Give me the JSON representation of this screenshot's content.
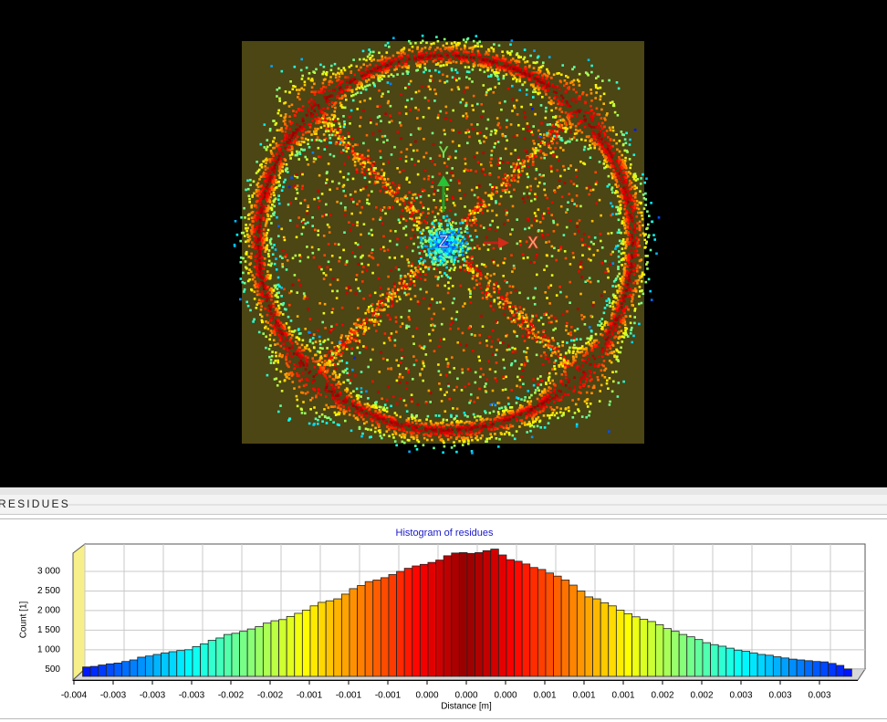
{
  "viewport": {
    "axis_labels": {
      "y": "Y",
      "z": "Z",
      "x": "X"
    }
  },
  "panel": {
    "title": "RESIDUES"
  },
  "chart_data": {
    "type": "histogram",
    "title": "Histogram of residues",
    "xlabel": "Distance [m]",
    "ylabel": "Count [1]",
    "colormap": "jet",
    "bins": [
      -0.00352,
      -0.003448,
      -0.003376,
      -0.003304,
      -0.003232,
      -0.00316,
      -0.003088,
      -0.003016,
      -0.002944,
      -0.002872,
      -0.0028,
      -0.002728,
      -0.002656,
      -0.002584,
      -0.002512,
      -0.00244,
      -0.002368,
      -0.002296,
      -0.002224,
      -0.002152,
      -0.00208,
      -0.002008,
      -0.001936,
      -0.001864,
      -0.001792,
      -0.00172,
      -0.001648,
      -0.001576,
      -0.001504,
      -0.001432,
      -0.00136,
      -0.001288,
      -0.001216,
      -0.001144,
      -0.001072,
      -0.001,
      -0.000928,
      -0.000856,
      -0.000784,
      -0.000712,
      -0.00064,
      -0.000568,
      -0.000496,
      -0.000424,
      -0.000352,
      -0.00028,
      -0.000208,
      -0.000136,
      -6.4e-05,
      8e-06,
      8e-05,
      0.000152,
      0.000224,
      0.000296,
      0.000368,
      0.00044,
      0.000512,
      0.000584,
      0.000656,
      0.000728,
      0.0008,
      0.000872,
      0.000944,
      0.001016,
      0.001088,
      0.00116,
      0.001232,
      0.001304,
      0.001376,
      0.001448,
      0.00152,
      0.001592,
      0.001664,
      0.001736,
      0.001808,
      0.00188,
      0.001952,
      0.002024,
      0.002096,
      0.002168,
      0.00224,
      0.002312,
      0.002384,
      0.002456,
      0.002528,
      0.0026,
      0.002672,
      0.002744,
      0.002816,
      0.002888,
      0.00296,
      0.003032,
      0.003104,
      0.003176,
      0.003248,
      0.00332,
      0.003392,
      0.003464,
      0.003536
    ],
    "values": [
      560,
      575,
      610,
      640,
      660,
      700,
      740,
      810,
      840,
      880,
      920,
      950,
      980,
      1000,
      1080,
      1150,
      1240,
      1300,
      1390,
      1420,
      1470,
      1530,
      1590,
      1680,
      1740,
      1770,
      1850,
      1930,
      2010,
      2120,
      2210,
      2250,
      2300,
      2420,
      2560,
      2640,
      2740,
      2780,
      2840,
      2920,
      3000,
      3080,
      3140,
      3180,
      3230,
      3290,
      3400,
      3470,
      3480,
      3460,
      3480,
      3530,
      3570,
      3420,
      3300,
      3260,
      3190,
      3100,
      3050,
      2960,
      2880,
      2780,
      2650,
      2500,
      2350,
      2300,
      2200,
      2120,
      2010,
      1920,
      1840,
      1780,
      1720,
      1640,
      1540,
      1470,
      1390,
      1330,
      1260,
      1180,
      1130,
      1090,
      1040,
      990,
      960,
      920,
      880,
      860,
      820,
      790,
      760,
      740,
      720,
      700,
      690,
      650,
      600,
      510
    ],
    "xlim": [
      -0.0036,
      0.0036
    ],
    "xticks": [
      {
        "value": -0.0036,
        "label": "-0.004"
      },
      {
        "value": -0.00324,
        "label": "-0.003"
      },
      {
        "value": -0.00288,
        "label": "-0.003"
      },
      {
        "value": -0.00252,
        "label": "-0.003"
      },
      {
        "value": -0.00216,
        "label": "-0.002"
      },
      {
        "value": -0.0018,
        "label": "-0.002"
      },
      {
        "value": -0.00144,
        "label": "-0.001"
      },
      {
        "value": -0.00108,
        "label": "-0.001"
      },
      {
        "value": -0.00072,
        "label": "-0.001"
      },
      {
        "value": -0.00036,
        "label": "0.000"
      },
      {
        "value": 0,
        "label": "0.000"
      },
      {
        "value": 0.00036,
        "label": "0.000"
      },
      {
        "value": 0.00072,
        "label": "0.001"
      },
      {
        "value": 0.00108,
        "label": "0.001"
      },
      {
        "value": 0.00144,
        "label": "0.001"
      },
      {
        "value": 0.0018,
        "label": "0.002"
      },
      {
        "value": 0.00216,
        "label": "0.002"
      },
      {
        "value": 0.00252,
        "label": "0.003"
      },
      {
        "value": 0.00288,
        "label": "0.003"
      },
      {
        "value": 0.00324,
        "label": "0.003"
      }
    ],
    "ylim": [
      320,
      3700
    ],
    "yticks": [
      {
        "value": 3000,
        "label": "3 000"
      },
      {
        "value": 2500,
        "label": "2 500"
      },
      {
        "value": 2000,
        "label": "2 000"
      },
      {
        "value": 1500,
        "label": "1 500"
      },
      {
        "value": 1000,
        "label": "1 000"
      },
      500
    ],
    "grid": true
  }
}
